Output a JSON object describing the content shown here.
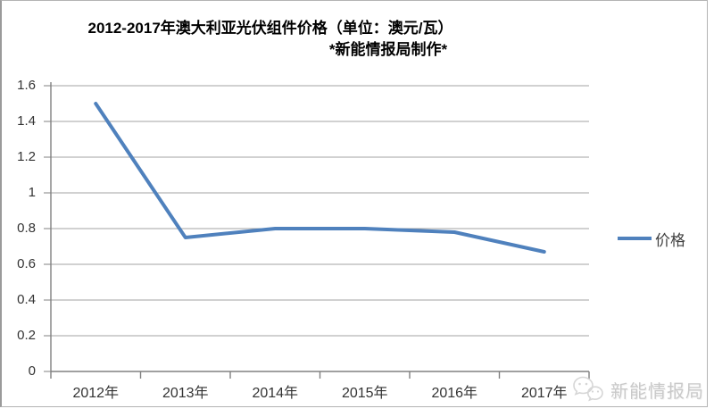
{
  "title": {
    "line1": "2012-2017年澳大利亚光伏组件价格（单位：澳元/瓦）",
    "line2": "*新能情报局制作*"
  },
  "chart_data": {
    "type": "line",
    "categories": [
      "2012年",
      "2013年",
      "2014年",
      "2015年",
      "2016年",
      "2017年"
    ],
    "series": [
      {
        "name": "价格",
        "values": [
          1.5,
          0.75,
          0.8,
          0.8,
          0.78,
          0.67
        ]
      }
    ],
    "title": "2012-2017年澳大利亚光伏组件价格（单位：澳元/瓦）",
    "subtitle": "*新能情报局制作*",
    "xlabel": "",
    "ylabel": "",
    "ylim": [
      0,
      1.6
    ],
    "y_tick_labels": [
      "0",
      "0.2",
      "0.4",
      "0.6",
      "0.8",
      "1",
      "1.2",
      "1.4",
      "1.6"
    ],
    "grid": true,
    "legend_position": "right",
    "line_color": "#4F81BD"
  },
  "legend": {
    "items": [
      {
        "label": "价格",
        "color": "#4F81BD"
      }
    ]
  },
  "watermark": {
    "icon": "wechat-icon",
    "text": "新能情报局",
    "color": "#c9c9c9"
  }
}
